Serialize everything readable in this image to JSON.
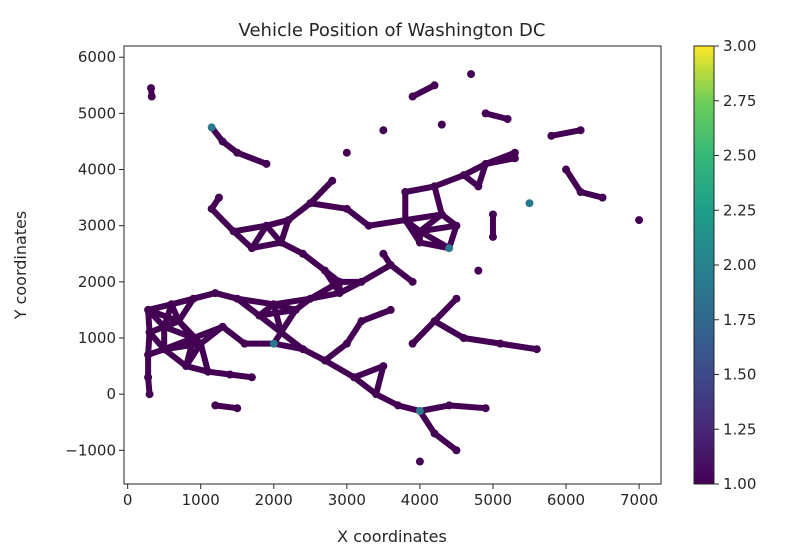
{
  "chart_data": {
    "type": "scatter",
    "title": "Vehicle Position of Washington DC",
    "xlabel": "X coordinates",
    "ylabel": "Y coordinates",
    "xlim": [
      -50,
      7300
    ],
    "ylim": [
      -1600,
      6200
    ],
    "x_ticks": [
      0,
      1000,
      2000,
      3000,
      4000,
      5000,
      6000,
      7000
    ],
    "x_tick_labels": [
      "0",
      "1000",
      "2000",
      "3000",
      "4000",
      "5000",
      "6000",
      "7000"
    ],
    "y_ticks": [
      -1000,
      0,
      1000,
      2000,
      3000,
      4000,
      5000,
      6000
    ],
    "y_tick_labels": [
      "−1000",
      "0",
      "1000",
      "2000",
      "3000",
      "4000",
      "5000",
      "6000"
    ],
    "grid": false,
    "colormap": "viridis",
    "point_color": "#440154",
    "accent_color": "#2a788e",
    "colorbar": {
      "min": 1.0,
      "max": 3.0,
      "ticks": [
        1.0,
        1.25,
        1.5,
        1.75,
        2.0,
        2.25,
        2.5,
        2.75,
        3.0
      ],
      "tick_labels": [
        "1.00",
        "1.25",
        "1.50",
        "1.75",
        "2.00",
        "2.25",
        "2.50",
        "2.75",
        "3.00"
      ]
    },
    "points": [
      [
        320,
        5450
      ],
      [
        330,
        5300
      ],
      [
        280,
        1500
      ],
      [
        300,
        1100
      ],
      [
        280,
        700
      ],
      [
        280,
        300
      ],
      [
        300,
        0
      ],
      [
        1150,
        4750
      ],
      [
        1300,
        4500
      ],
      [
        1500,
        4300
      ],
      [
        1900,
        4100
      ],
      [
        1250,
        3500
      ],
      [
        1150,
        3300
      ],
      [
        1450,
        2900
      ],
      [
        1700,
        2600
      ],
      [
        2100,
        2700
      ],
      [
        2400,
        2500
      ],
      [
        2700,
        2200
      ],
      [
        2900,
        2000
      ],
      [
        3500,
        2500
      ],
      [
        4000,
        2900
      ],
      [
        4300,
        3200
      ],
      [
        4800,
        3700
      ],
      [
        5300,
        4200
      ],
      [
        5800,
        4600
      ],
      [
        6200,
        4700
      ],
      [
        6000,
        4000
      ],
      [
        6500,
        3500
      ],
      [
        7000,
        3100
      ],
      [
        6200,
        3600
      ],
      [
        5500,
        3400
      ],
      [
        5000,
        3200
      ],
      [
        4500,
        3000
      ],
      [
        4000,
        2700
      ],
      [
        3600,
        2300
      ],
      [
        3200,
        2000
      ],
      [
        2900,
        1800
      ],
      [
        2500,
        1700
      ],
      [
        2000,
        1600
      ],
      [
        3800,
        3600
      ],
      [
        4200,
        3700
      ],
      [
        4600,
        3900
      ],
      [
        4900,
        4100
      ],
      [
        5300,
        4300
      ],
      [
        5000,
        2800
      ],
      [
        4800,
        2200
      ],
      [
        4500,
        1700
      ],
      [
        4200,
        1300
      ],
      [
        3900,
        900
      ],
      [
        3500,
        500
      ],
      [
        3100,
        300
      ],
      [
        3400,
        0
      ],
      [
        3700,
        -200
      ],
      [
        4000,
        -300
      ],
      [
        4400,
        -200
      ],
      [
        4900,
        -250
      ],
      [
        4600,
        1000
      ],
      [
        5100,
        900
      ],
      [
        5600,
        800
      ],
      [
        3600,
        1500
      ],
      [
        3200,
        1300
      ],
      [
        3000,
        900
      ],
      [
        2700,
        600
      ],
      [
        2400,
        800
      ],
      [
        2100,
        1100
      ],
      [
        1800,
        1400
      ],
      [
        1500,
        1700
      ],
      [
        1200,
        1800
      ],
      [
        900,
        1700
      ],
      [
        600,
        1600
      ],
      [
        500,
        1200
      ],
      [
        500,
        800
      ],
      [
        800,
        500
      ],
      [
        1100,
        400
      ],
      [
        1400,
        350
      ],
      [
        1700,
        300
      ],
      [
        2000,
        900
      ],
      [
        1300,
        1200
      ],
      [
        900,
        1000
      ],
      [
        1200,
        -200
      ],
      [
        1500,
        -250
      ],
      [
        4000,
        -1200
      ],
      [
        4500,
        -1000
      ],
      [
        4200,
        -700
      ],
      [
        3000,
        4300
      ],
      [
        3500,
        4700
      ],
      [
        3900,
        5300
      ],
      [
        4200,
        5500
      ],
      [
        4700,
        5700
      ],
      [
        4900,
        5000
      ],
      [
        5200,
        4900
      ],
      [
        4300,
        4800
      ],
      [
        2800,
        3800
      ],
      [
        2500,
        3400
      ],
      [
        2200,
        3100
      ],
      [
        1900,
        3000
      ],
      [
        3000,
        3300
      ],
      [
        3300,
        3000
      ],
      [
        3800,
        3100
      ],
      [
        4400,
        2600
      ],
      [
        3900,
        2000
      ],
      [
        1000,
        900
      ],
      [
        700,
        1300
      ],
      [
        1600,
        900
      ],
      [
        2300,
        1500
      ]
    ]
  }
}
